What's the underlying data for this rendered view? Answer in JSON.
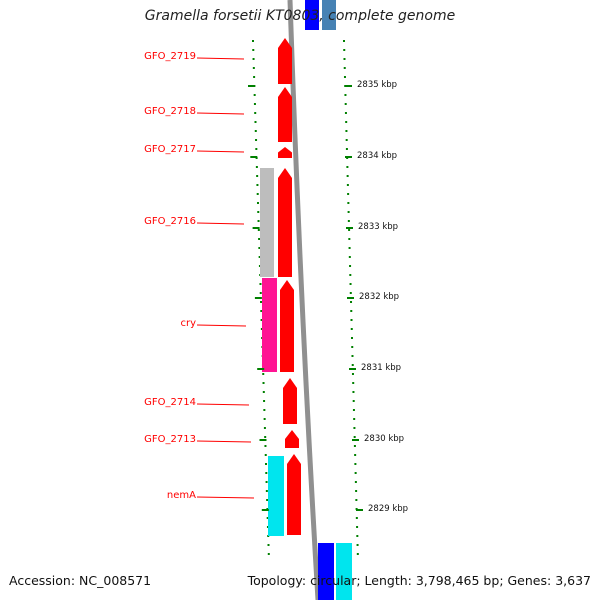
{
  "title": "Gramella forsetii KT0803, complete genome",
  "footer": {
    "accession_label": "Accession:",
    "accession": "NC_008571",
    "topology_label": "Topology:",
    "topology": "circular",
    "length_label": "Length:",
    "length": "3,798,465 bp",
    "genes_label": "Genes:",
    "genes": "3,637"
  },
  "colors": {
    "forward_gene": "#ff0000",
    "feature_gray": "#bdbdbd",
    "feature_pink": "#ff1493",
    "feature_cyan": "#00e5ee",
    "feature_blue": "#0000ff",
    "backbone": "#909090",
    "tick_green": "#008000",
    "label_red": "#ff0000"
  },
  "genes": [
    {
      "name": "GFO_2719"
    },
    {
      "name": "GFO_2718"
    },
    {
      "name": "GFO_2717"
    },
    {
      "name": "GFO_2716"
    },
    {
      "name": "cry"
    },
    {
      "name": "GFO_2714"
    },
    {
      "name": "GFO_2713"
    },
    {
      "name": "nemA"
    }
  ],
  "ticks": [
    {
      "label": "2835 kbp"
    },
    {
      "label": "2834 kbp"
    },
    {
      "label": "2833 kbp"
    },
    {
      "label": "2832 kbp"
    },
    {
      "label": "2831 kbp"
    },
    {
      "label": "2830 kbp"
    },
    {
      "label": "2829 kbp"
    }
  ]
}
